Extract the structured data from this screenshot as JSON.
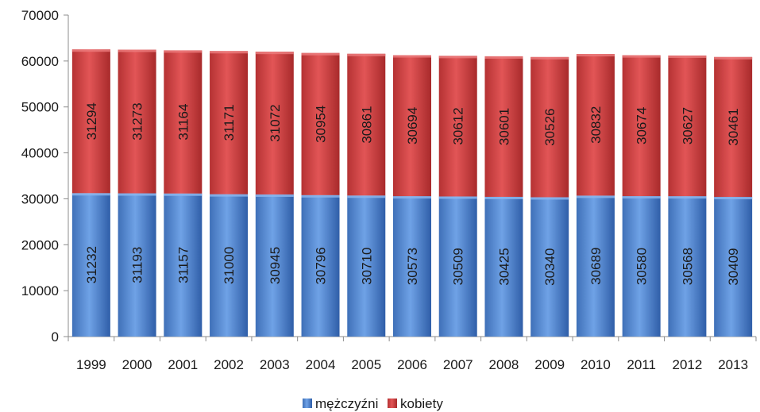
{
  "chart_data": {
    "type": "bar",
    "stacked": true,
    "categories": [
      "1999",
      "2000",
      "2001",
      "2002",
      "2003",
      "2004",
      "2005",
      "2006",
      "2007",
      "2008",
      "2009",
      "2010",
      "2011",
      "2012",
      "2013"
    ],
    "series": [
      {
        "name": "mężczyźni",
        "color": "#4a7fc8",
        "values": [
          31232,
          31193,
          31157,
          31000,
          30945,
          30796,
          30710,
          30573,
          30509,
          30425,
          30340,
          30689,
          30580,
          30568,
          30409
        ]
      },
      {
        "name": "kobiety",
        "color": "#c0393a",
        "values": [
          31294,
          31273,
          31164,
          31171,
          31072,
          30954,
          30861,
          30694,
          30612,
          30601,
          30526,
          30832,
          30674,
          30627,
          30461
        ]
      }
    ],
    "ylim": [
      0,
      70000
    ],
    "yticks": [
      0,
      10000,
      20000,
      30000,
      40000,
      50000,
      60000,
      70000
    ],
    "data_labels": true,
    "data_label_rotation": "vertical",
    "grid": false,
    "legend_position": "bottom"
  }
}
